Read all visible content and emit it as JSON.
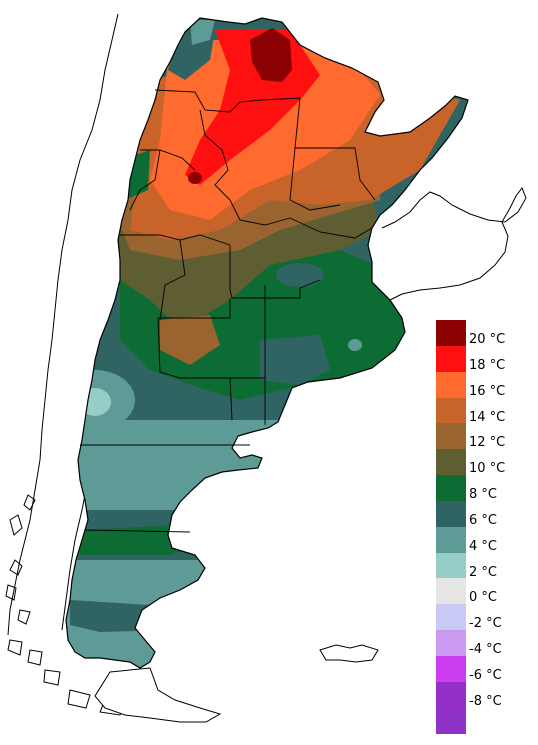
{
  "legend": {
    "items": [
      {
        "label": "20 °C",
        "color": "#8b0000"
      },
      {
        "label": "18 °C",
        "color": "#ff1010"
      },
      {
        "label": "16 °C",
        "color": "#ff6a2e"
      },
      {
        "label": "14 °C",
        "color": "#c8642a"
      },
      {
        "label": "12 °C",
        "color": "#9a6430"
      },
      {
        "label": "10 °C",
        "color": "#5e5e32"
      },
      {
        "label": "8 °C",
        "color": "#0d6b34"
      },
      {
        "label": "6 °C",
        "color": "#2f6463"
      },
      {
        "label": "4 °C",
        "color": "#5e9a96"
      },
      {
        "label": "2 °C",
        "color": "#96cdc6"
      },
      {
        "label": "0 °C",
        "color": "#e5e5e3"
      },
      {
        "label": "-2 °C",
        "color": "#c9c9f5"
      },
      {
        "label": "-4 °C",
        "color": "#cc99f0"
      },
      {
        "label": "-6 °C",
        "color": "#cc3cf0"
      },
      {
        "label": "-8 °C",
        "color": "#9430c8"
      }
    ],
    "bottom_color": "#8e32c8"
  }
}
